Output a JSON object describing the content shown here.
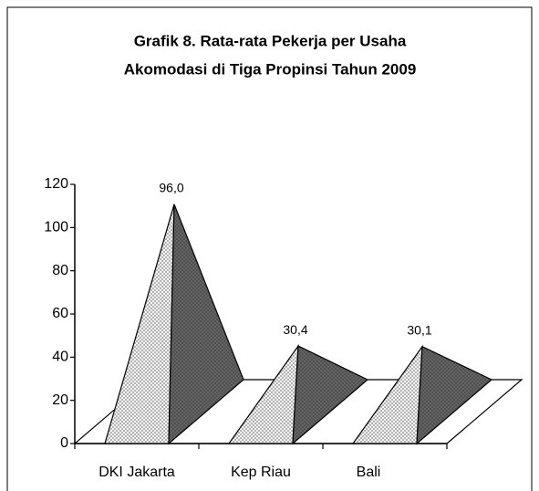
{
  "chart_data": {
    "type": "pyramid3d",
    "title": "Grafik 8. Rata-rata Pekerja per Usaha",
    "subtitle": "Akomodasi di Tiga Propinsi Tahun 2009",
    "categories": [
      "DKI Jakarta",
      "Kep Riau",
      "Bali"
    ],
    "values": [
      96.0,
      30.4,
      30.1
    ],
    "value_labels": [
      "96,0",
      "30,4",
      "30,1"
    ],
    "ylim": [
      0,
      120
    ],
    "yticks": [
      0,
      20,
      40,
      60,
      80,
      100,
      120
    ]
  }
}
